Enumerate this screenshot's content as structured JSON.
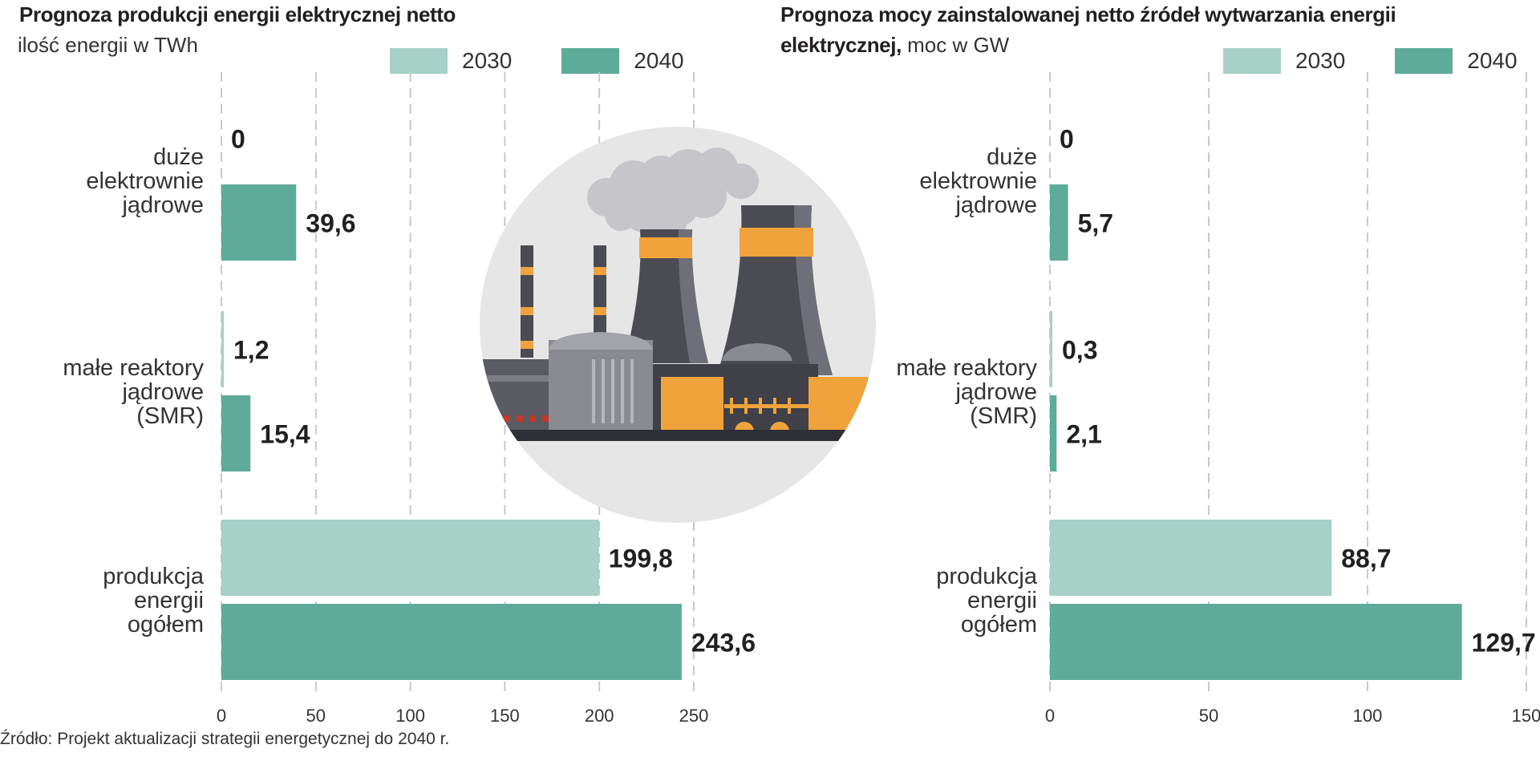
{
  "colors": {
    "series_2030": "#a7d0c7",
    "series_2040": "#5fab99",
    "grid": "#c9c9c9",
    "text": "#231f20"
  },
  "left": {
    "title": "Prognoza produkcji energii elektrycznej netto",
    "subtitle": "ilość energii w TWh"
  },
  "right": {
    "title_line1": "Prognoza mocy zainstalowanej netto źródeł  wytwarzania energii",
    "title_line2_bold": "elektrycznej,",
    "title_line2_rest": " moc w GW"
  },
  "legend": {
    "items": [
      "2030",
      "2040"
    ]
  },
  "source": "Źródło: Projekt aktualizacji strategii energetycznej do 2040 r.",
  "illustration": {
    "icon": "nuclear-power-plant-icon"
  },
  "chart_data": [
    {
      "type": "bar",
      "orientation": "horizontal",
      "title": "Prognoza produkcji energii elektrycznej netto",
      "subtitle": "ilość energii w TWh",
      "categories": [
        [
          "duże",
          "elektrownie",
          "jądrowe"
        ],
        [
          "małe reaktory",
          "jądrowe",
          "(SMR)"
        ],
        [
          "produkcja",
          "energii",
          "ogółem"
        ]
      ],
      "series": [
        {
          "name": "2030",
          "values": [
            0,
            1.2,
            199.8
          ],
          "labels": [
            "0",
            "1,2",
            "199,8"
          ]
        },
        {
          "name": "2040",
          "values": [
            39.6,
            15.4,
            243.6
          ],
          "labels": [
            "39,6",
            "15,4",
            "243,6"
          ]
        }
      ],
      "xlim": [
        0,
        250
      ],
      "xticks": [
        0,
        50,
        100,
        150,
        200,
        250
      ],
      "grid": true,
      "legend": "top-right"
    },
    {
      "type": "bar",
      "orientation": "horizontal",
      "title": "Prognoza mocy zainstalowanej netto źródeł  wytwarzania energii elektrycznej",
      "subtitle": "moc w GW",
      "categories": [
        [
          "duże",
          "elektrownie",
          "jądrowe"
        ],
        [
          "małe reaktory",
          "jądrowe",
          "(SMR)"
        ],
        [
          "produkcja",
          "energii",
          "ogółem"
        ]
      ],
      "series": [
        {
          "name": "2030",
          "values": [
            0,
            0.3,
            88.7
          ],
          "labels": [
            "0",
            "0,3",
            "88,7"
          ]
        },
        {
          "name": "2040",
          "values": [
            5.7,
            2.1,
            129.7
          ],
          "labels": [
            "5,7",
            "2,1",
            "129,7"
          ]
        }
      ],
      "xlim": [
        0,
        150
      ],
      "xticks": [
        0,
        50,
        100,
        150
      ],
      "grid": true,
      "legend": "top-right"
    }
  ]
}
